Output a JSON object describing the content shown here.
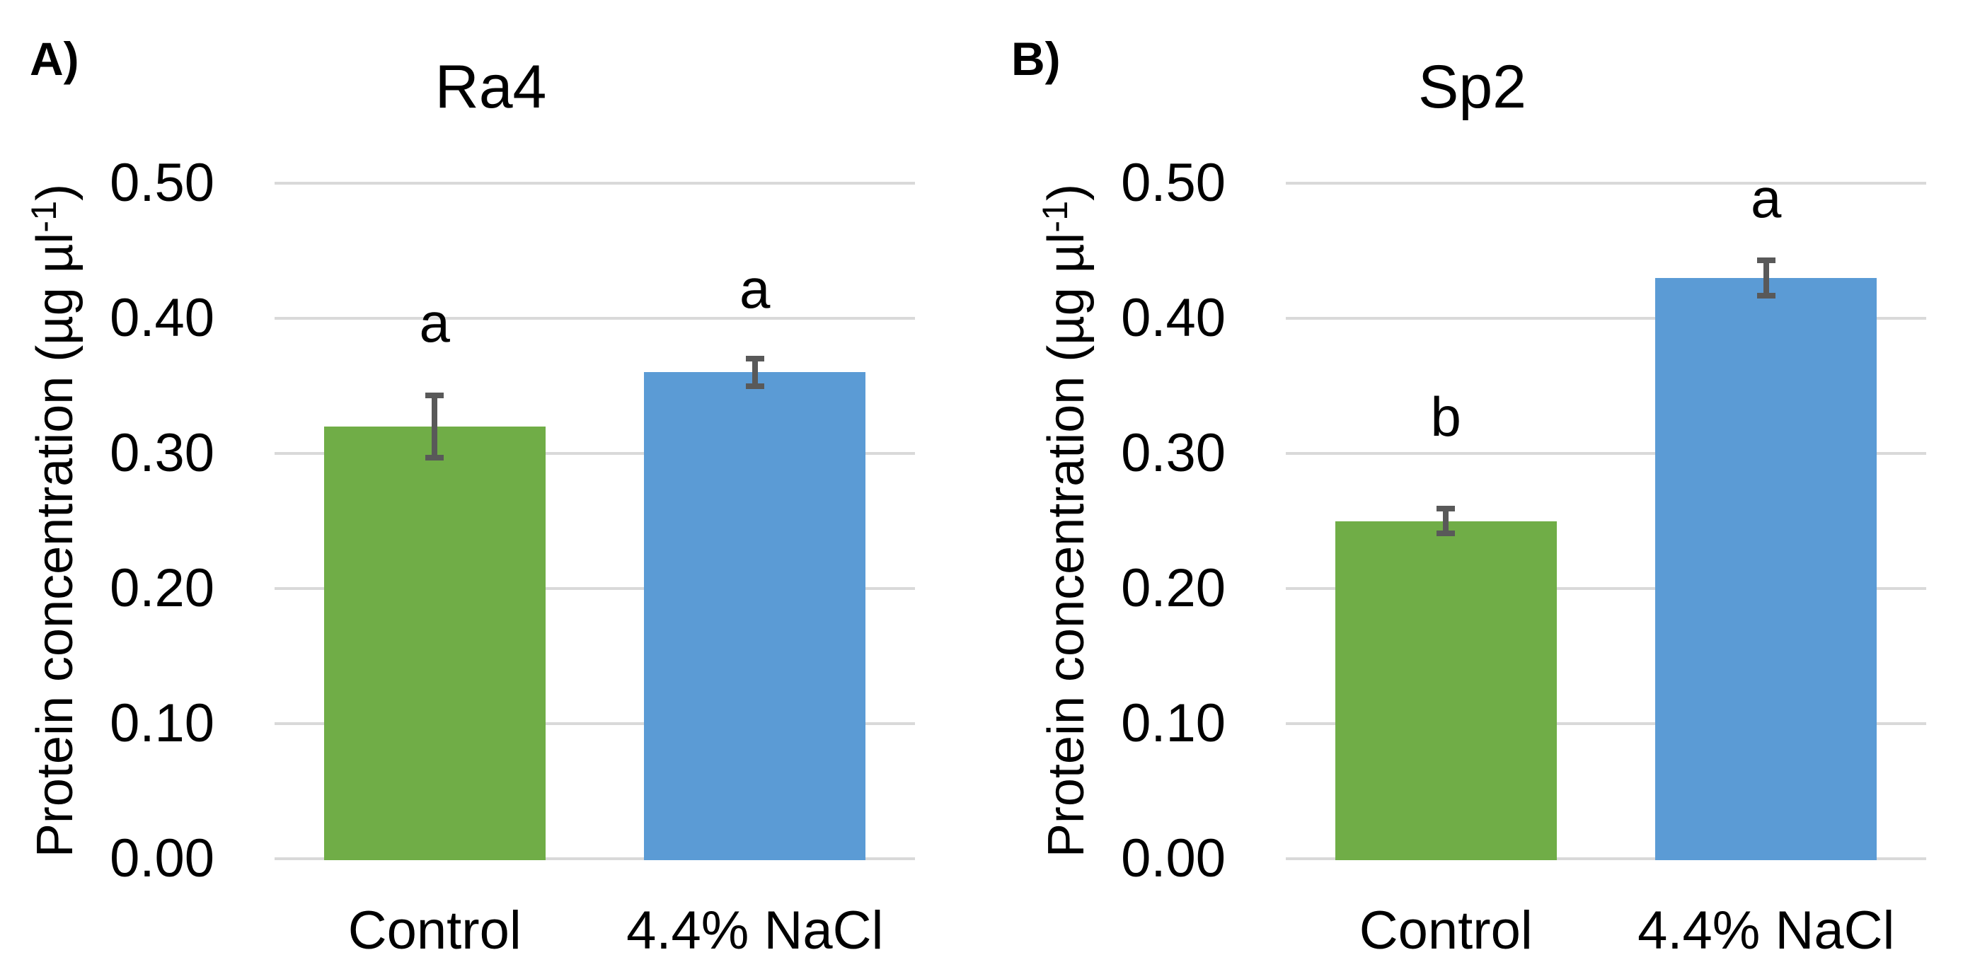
{
  "figure": {
    "background": "#FFFFFF",
    "text_color": "#000000",
    "gridline_color": "#D9D9D9",
    "error_bar_color": "#595959"
  },
  "y_axis": {
    "label": "Protein concentration (µg µl⁻¹)",
    "label_prefix": "Protein concentration (µg µl",
    "label_superscript": "-1",
    "label_suffix": ")",
    "min": 0,
    "max": 0.5,
    "step": 0.1,
    "tick_labels": [
      "0.00",
      "0.10",
      "0.20",
      "0.30",
      "0.40",
      "0.50"
    ]
  },
  "chart_data": [
    {
      "type": "bar",
      "panel_letter": "A)",
      "title": "Ra4",
      "categories": [
        "Control",
        "4.4% NaCl"
      ],
      "values": [
        0.32,
        0.36
      ],
      "error_bars": [
        0.023,
        0.01
      ],
      "sig_letters": [
        "a",
        "a"
      ],
      "sig_letter_y": [
        0.385,
        0.41
      ],
      "bar_colors": [
        "#70AD47",
        "#5B9BD5"
      ],
      "xlabel": "",
      "ylabel": "Protein concentration (µg µl⁻¹)",
      "ylim": [
        0,
        0.5
      ],
      "grid": true,
      "legend": false
    },
    {
      "type": "bar",
      "panel_letter": "B)",
      "title": "Sp2",
      "categories": [
        "Control",
        "4.4% NaCl"
      ],
      "values": [
        0.25,
        0.43
      ],
      "error_bars": [
        0.009,
        0.013
      ],
      "sig_letters": [
        "b",
        "a"
      ],
      "sig_letter_y": [
        0.315,
        0.477
      ],
      "bar_colors": [
        "#70AD47",
        "#5B9BD5"
      ],
      "xlabel": "",
      "ylabel": "Protein concentration (µg µl⁻¹)",
      "ylim": [
        0,
        0.5
      ],
      "grid": true,
      "legend": false
    }
  ]
}
